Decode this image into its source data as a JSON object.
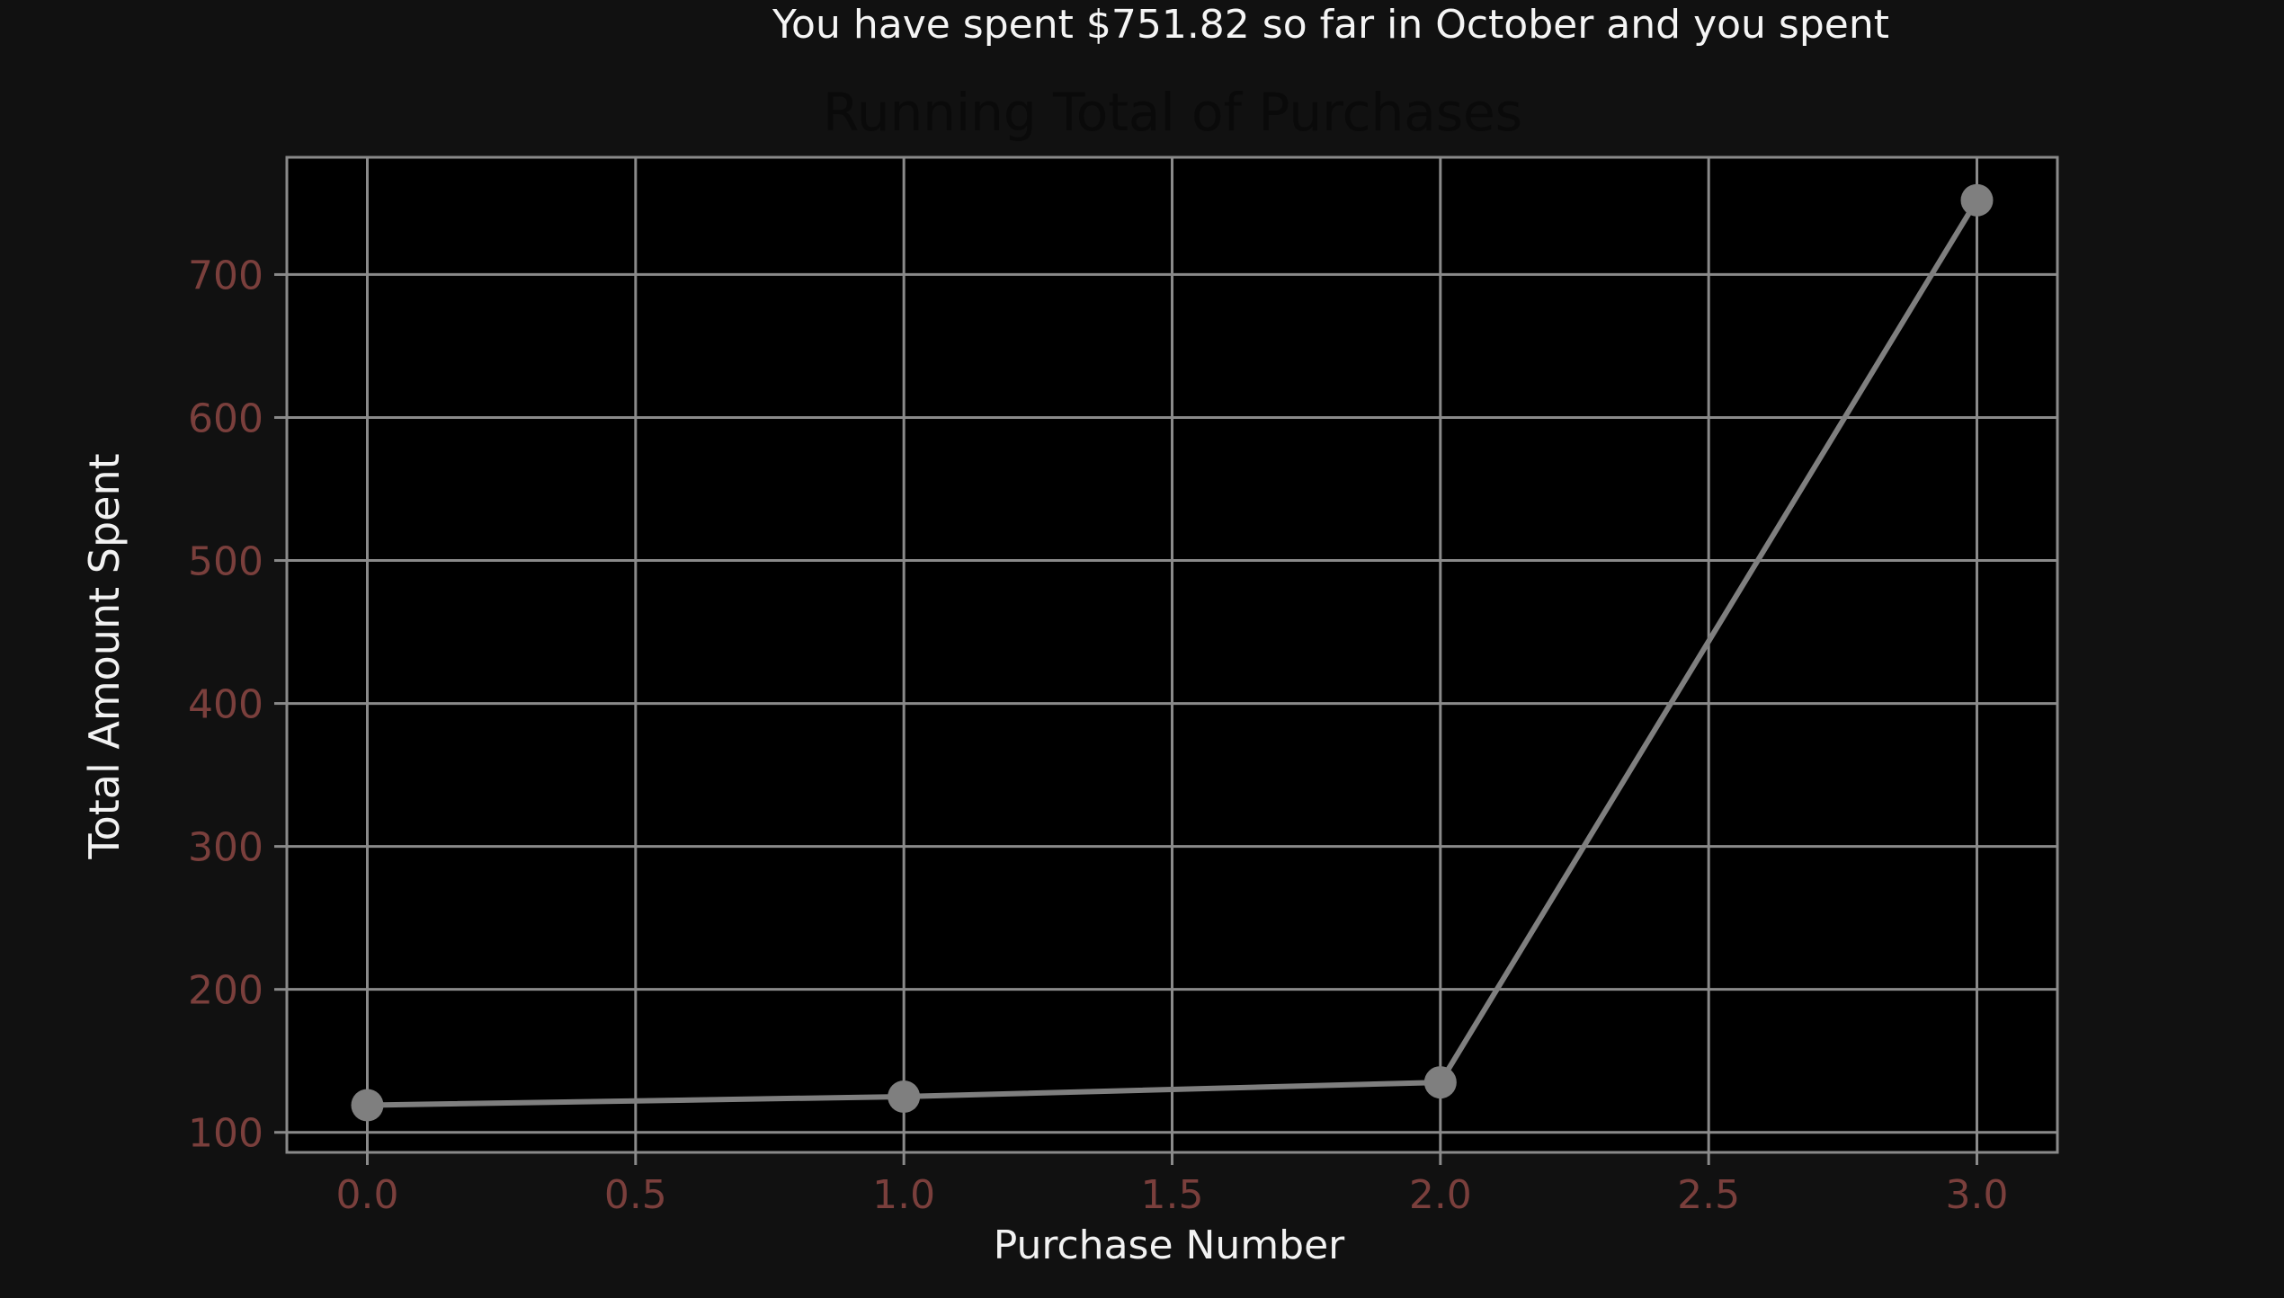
{
  "header": {
    "summary_text": "You have spent $751.82 so far in October and you spent"
  },
  "colors": {
    "background": "#111111",
    "plot_background": "#000000",
    "grid": "#8a8a8a",
    "line": "#7f7f7f",
    "marker": "#7f7f7f",
    "tick_label": "#7a3f3c",
    "axis_label": "#f2f2f2",
    "title": "#0a0a0a"
  },
  "chart_data": {
    "type": "line",
    "title": "Running Total of Purchases",
    "xlabel": "Purchase Number",
    "ylabel": "Total Amount Spent",
    "x": [
      0,
      1,
      2,
      3
    ],
    "series": [
      {
        "values": [
          119,
          125,
          135,
          752
        ]
      }
    ],
    "xlim": [
      -0.15,
      3.15
    ],
    "ylim": [
      86,
      782
    ],
    "x_ticks": [
      0.0,
      0.5,
      1.0,
      1.5,
      2.0,
      2.5,
      3.0
    ],
    "x_tick_labels": [
      "0.0",
      "0.5",
      "1.0",
      "1.5",
      "2.0",
      "2.5",
      "3.0"
    ],
    "y_ticks": [
      100,
      200,
      300,
      400,
      500,
      600,
      700
    ],
    "y_tick_labels": [
      "100",
      "200",
      "300",
      "400",
      "500",
      "600",
      "700"
    ],
    "grid": true,
    "markers": true
  }
}
